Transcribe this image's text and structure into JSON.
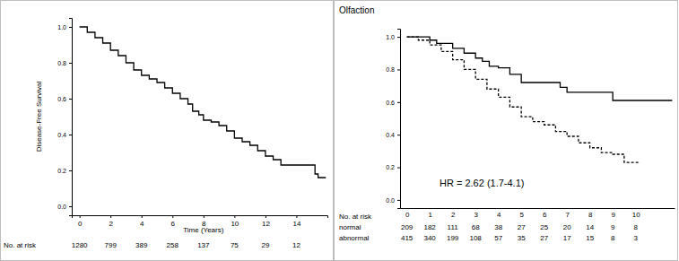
{
  "chart_data": [
    {
      "type": "step",
      "x_label": "Time (Years)",
      "y_label": "Disease-Free Survival",
      "xlim": [
        -0.5,
        16
      ],
      "ylim": [
        -0.05,
        1.05
      ],
      "xticks": [
        0,
        2,
        4,
        6,
        8,
        10,
        12,
        14
      ],
      "yticks": [
        {
          "value": 0,
          "label": "0.0"
        },
        {
          "value": 0.2,
          "label": "0.2"
        },
        {
          "value": 0.4,
          "label": "0.4"
        },
        {
          "value": 0.6,
          "label": "0.6"
        },
        {
          "value": 0.8,
          "label": "0.8"
        },
        {
          "value": 1,
          "label": "1.0"
        }
      ],
      "grid": false,
      "series": [
        {
          "color": "#000000",
          "line_style": "solid",
          "x": [
            0,
            0.5,
            1,
            1.5,
            2,
            2.5,
            3,
            3.5,
            4,
            4.5,
            5,
            5.5,
            6,
            6.5,
            7,
            7.3,
            7.7,
            8,
            8.5,
            9,
            9.5,
            10,
            10.5,
            11,
            11.5,
            12,
            12.5,
            13,
            15.2,
            15.4,
            15.9
          ],
          "values": [
            1.0,
            0.97,
            0.94,
            0.91,
            0.87,
            0.84,
            0.8,
            0.76,
            0.73,
            0.71,
            0.69,
            0.66,
            0.63,
            0.6,
            0.57,
            0.53,
            0.51,
            0.48,
            0.47,
            0.45,
            0.42,
            0.38,
            0.36,
            0.34,
            0.31,
            0.28,
            0.26,
            0.23,
            0.18,
            0.16,
            0.16
          ]
        }
      ],
      "at_risk": {
        "label": "No. at risk",
        "x": [
          0,
          2,
          4,
          6,
          8,
          10,
          12,
          14
        ],
        "rows": [
          {
            "values": [
              1280,
              799,
              389,
              258,
              137,
              75,
              29,
              12
            ]
          }
        ]
      }
    },
    {
      "type": "step",
      "title": "Olfaction",
      "annotation": "HR = 2.62 (1.7-4.1)",
      "xlim": [
        -0.3,
        11.7
      ],
      "ylim": [
        -0.05,
        1.05
      ],
      "xticks": [
        0,
        1,
        2,
        3,
        4,
        5,
        6,
        7,
        8,
        9,
        10
      ],
      "yticks": [
        {
          "value": 0,
          "label": "0.0"
        },
        {
          "value": 0.2,
          "label": "0.2"
        },
        {
          "value": 0.4,
          "label": "0.4"
        },
        {
          "value": 0.6,
          "label": "0.6"
        },
        {
          "value": 0.8,
          "label": "0.8"
        },
        {
          "value": 1,
          "label": "1.0"
        }
      ],
      "grid": false,
      "series": [
        {
          "color": "#000000",
          "line_style": "solid",
          "x": [
            0,
            1,
            1.3,
            2,
            2.5,
            3,
            3.3,
            3.6,
            4,
            4.5,
            5,
            6.7,
            7,
            9,
            11.6
          ],
          "values": [
            1.0,
            0.98,
            0.96,
            0.93,
            0.9,
            0.87,
            0.85,
            0.82,
            0.81,
            0.77,
            0.72,
            0.69,
            0.66,
            0.61,
            0.61
          ]
        },
        {
          "color": "#000000",
          "line_style": "dashed",
          "x": [
            0,
            0.5,
            1,
            1.5,
            2,
            2.5,
            3,
            3.5,
            4,
            4.5,
            5,
            5.5,
            6,
            6.5,
            7,
            7.5,
            8,
            8.5,
            9,
            9.5,
            10.2
          ],
          "values": [
            1.0,
            0.98,
            0.95,
            0.91,
            0.86,
            0.8,
            0.74,
            0.68,
            0.63,
            0.57,
            0.51,
            0.48,
            0.46,
            0.42,
            0.39,
            0.35,
            0.32,
            0.29,
            0.28,
            0.23,
            0.23
          ]
        }
      ],
      "at_risk": {
        "label": "No. at risk",
        "x": [
          0,
          1,
          2,
          3,
          4,
          5,
          6,
          7,
          8,
          9,
          10
        ],
        "rows": [
          {
            "name": "normal",
            "values": [
              209,
              182,
              111,
              68,
              38,
              27,
              25,
              20,
              14,
              9,
              8
            ]
          },
          {
            "name": "abnormal",
            "values": [
              415,
              340,
              199,
              108,
              57,
              35,
              27,
              17,
              15,
              8,
              3
            ]
          }
        ]
      }
    }
  ]
}
